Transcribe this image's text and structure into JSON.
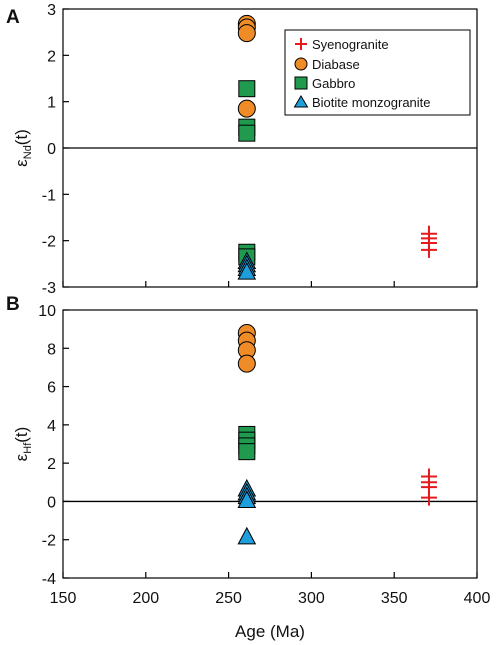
{
  "chart_data": [
    {
      "type": "scatter",
      "panel_label": "A",
      "ylabel_main": "ε",
      "ylabel_sub": "Nd",
      "ylabel_tail": "(t)",
      "ylim": [
        -3,
        3
      ],
      "yticks": [
        3,
        2,
        1,
        0,
        -1,
        -2,
        -3
      ],
      "xlim": [
        150,
        400
      ],
      "legend_position": "top-right",
      "reference_line_y": 0,
      "series": [
        {
          "name": "Syenogranite",
          "marker": "plus",
          "color": "#e41a1c",
          "points": [
            [
              371,
              -1.85
            ],
            [
              371,
              -1.95
            ],
            [
              371,
              -2.05
            ],
            [
              371,
              -2.2
            ]
          ]
        },
        {
          "name": "Diabase",
          "marker": "circle",
          "color": "#f08c28",
          "points": [
            [
              261,
              2.68
            ],
            [
              261,
              2.6
            ],
            [
              261,
              2.48
            ],
            [
              261,
              0.85
            ]
          ]
        },
        {
          "name": "Gabbro",
          "marker": "square",
          "color": "#1f9a4e",
          "points": [
            [
              261,
              1.28
            ],
            [
              261,
              0.45
            ],
            [
              261,
              0.32
            ],
            [
              261,
              -2.25
            ],
            [
              261,
              -2.35
            ]
          ]
        },
        {
          "name": "Biotite monzogranite",
          "marker": "triangle",
          "color": "#1e9fdc",
          "points": [
            [
              261,
              -2.45
            ],
            [
              261,
              -2.52
            ],
            [
              261,
              -2.6
            ],
            [
              261,
              -2.68
            ]
          ]
        }
      ]
    },
    {
      "type": "scatter",
      "panel_label": "B",
      "ylabel_main": "ε",
      "ylabel_sub": "Hf",
      "ylabel_tail": "(t)",
      "ylim": [
        -4,
        10
      ],
      "yticks": [
        10,
        8,
        6,
        4,
        2,
        0,
        -2,
        -4
      ],
      "xlim": [
        150,
        400
      ],
      "xticks": [
        150,
        200,
        250,
        300,
        350,
        400
      ],
      "xlabel": "Age (Ma)",
      "reference_line_y": 0,
      "series": [
        {
          "name": "Syenogranite",
          "marker": "plus",
          "color": "#e41a1c",
          "points": [
            [
              371,
              1.3
            ],
            [
              371,
              1.0
            ],
            [
              371,
              0.75
            ],
            [
              371,
              0.2
            ]
          ]
        },
        {
          "name": "Diabase",
          "marker": "circle",
          "color": "#f08c28",
          "points": [
            [
              261,
              8.8
            ],
            [
              261,
              8.4
            ],
            [
              261,
              7.9
            ],
            [
              261,
              7.2
            ]
          ]
        },
        {
          "name": "Gabbro",
          "marker": "square",
          "color": "#1f9a4e",
          "points": [
            [
              261,
              3.5
            ],
            [
              261,
              3.2
            ],
            [
              261,
              2.9
            ],
            [
              261,
              2.6
            ]
          ]
        },
        {
          "name": "Biotite monzogranite",
          "marker": "triangle",
          "color": "#1e9fdc",
          "points": [
            [
              261,
              0.65
            ],
            [
              261,
              0.45
            ],
            [
              261,
              0.25
            ],
            [
              261,
              0.05
            ],
            [
              261,
              -1.85
            ]
          ]
        }
      ]
    }
  ]
}
